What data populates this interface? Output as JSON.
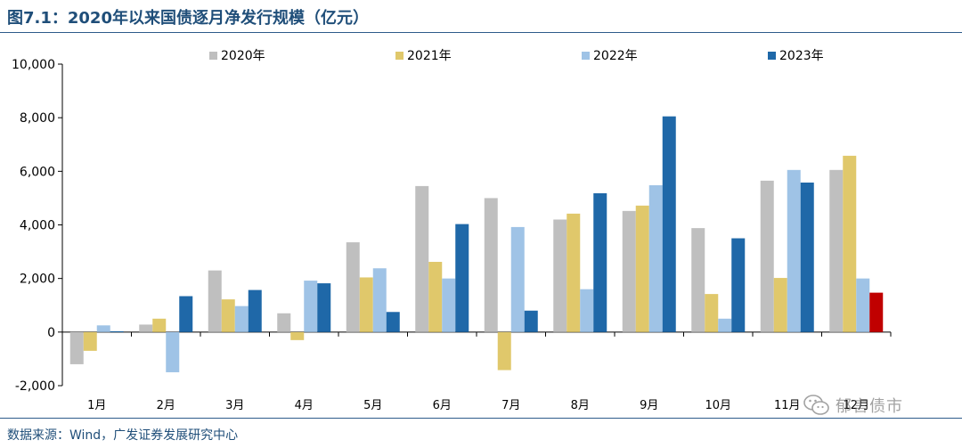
{
  "header": {
    "title": "图7.1：2020年以来国债逐月净发行规模（亿元）"
  },
  "footer": {
    "source": "数据来源：Wind，广发证券发展研究中心"
  },
  "watermark": {
    "text": "郁言债市",
    "icon": "wechat-icon"
  },
  "chart_data": {
    "type": "bar",
    "title": "图7.1：2020年以来国债逐月净发行规模（亿元）",
    "categories": [
      "1月",
      "2月",
      "3月",
      "4月",
      "5月",
      "6月",
      "7月",
      "8月",
      "9月",
      "10月",
      "11月",
      "12月"
    ],
    "series": [
      {
        "name": "2020年",
        "color": "#bfbfbf",
        "values": [
          -1200,
          280,
          2300,
          700,
          3350,
          5450,
          5000,
          4200,
          4520,
          3880,
          5650,
          6050
        ]
      },
      {
        "name": "2021年",
        "color": "#e0c86b",
        "values": [
          -700,
          500,
          1220,
          -300,
          2040,
          2620,
          -1420,
          4420,
          4720,
          1420,
          2020,
          6580
        ]
      },
      {
        "name": "2022年",
        "color": "#9fc3e6",
        "values": [
          250,
          -1500,
          970,
          1920,
          2380,
          2000,
          3920,
          1600,
          5480,
          500,
          6050,
          2000
        ]
      },
      {
        "name": "2023年",
        "color": "#1f68a8",
        "values": [
          30,
          1340,
          1570,
          1820,
          750,
          4030,
          800,
          5180,
          8050,
          3500,
          5580,
          null
        ]
      },
      {
        "name": "",
        "color": "#c00000",
        "values": [
          null,
          null,
          null,
          null,
          null,
          null,
          null,
          null,
          null,
          null,
          null,
          1470
        ]
      }
    ],
    "ylim": [
      -2000,
      10000
    ],
    "yticks": [
      -2000,
      0,
      2000,
      4000,
      6000,
      8000,
      10000
    ],
    "ytick_labels": [
      "-2,000",
      "0",
      "2,000",
      "4,000",
      "6,000",
      "8,000",
      "10,000"
    ],
    "grid": false,
    "legend": "top"
  }
}
